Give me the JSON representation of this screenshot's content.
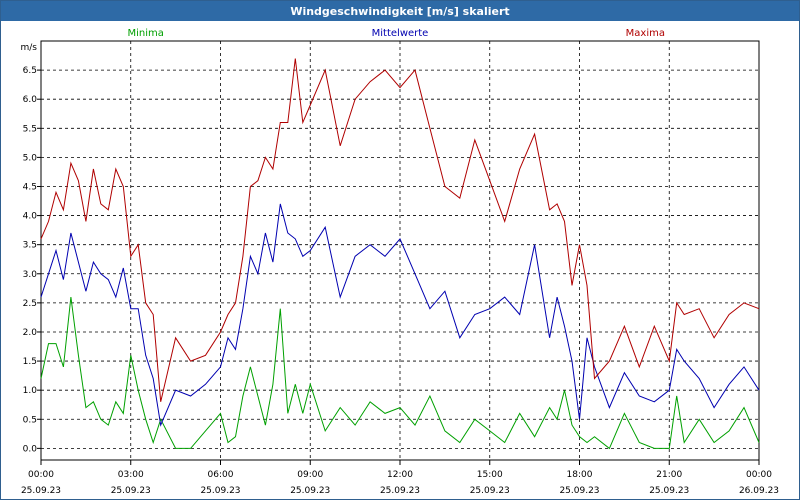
{
  "window": {
    "title": "Windgeschwindigkeit [m/s] skaliert"
  },
  "chart_data": {
    "type": "line",
    "title": "Windgeschwindigkeit [m/s] skaliert",
    "ylabel": "m/s",
    "ylim": [
      -0.2,
      7.0
    ],
    "yticks": [
      0.0,
      0.5,
      1.0,
      1.5,
      2.0,
      2.5,
      3.0,
      3.5,
      4.0,
      4.5,
      5.0,
      5.5,
      6.0,
      6.5
    ],
    "ytick_labels": [
      "0.0",
      "0.5",
      "1.0",
      "1.5",
      "2.0",
      "2.5",
      "3.0",
      "3.5",
      "4.0",
      "4.5",
      "5.0",
      "5.5",
      "6.0",
      "6.5"
    ],
    "x_ticks": [
      {
        "time": "00:00",
        "date": "25.09.23"
      },
      {
        "time": "03:00",
        "date": "25.09.23"
      },
      {
        "time": "06:00",
        "date": "25.09.23"
      },
      {
        "time": "09:00",
        "date": "25.09.23"
      },
      {
        "time": "12:00",
        "date": "25.09.23"
      },
      {
        "time": "15:00",
        "date": "25.09.23"
      },
      {
        "time": "18:00",
        "date": "25.09.23"
      },
      {
        "time": "21:00",
        "date": "25.09.23"
      },
      {
        "time": "00:00",
        "date": "26.09.23"
      }
    ],
    "x_unit": "hours",
    "grid": true,
    "series": [
      {
        "name": "Minima",
        "color": "#00a000",
        "x": [
          0,
          0.25,
          0.5,
          0.75,
          1,
          1.25,
          1.5,
          1.75,
          2,
          2.25,
          2.5,
          2.75,
          3,
          3.25,
          3.5,
          3.75,
          4,
          4.5,
          5,
          5.5,
          6,
          6.25,
          6.5,
          6.75,
          7,
          7.25,
          7.5,
          7.75,
          8,
          8.25,
          8.5,
          8.75,
          9,
          9.5,
          10,
          10.5,
          11,
          11.5,
          12,
          12.5,
          13,
          13.5,
          14,
          14.5,
          15,
          15.5,
          16,
          16.5,
          17,
          17.25,
          17.5,
          17.75,
          18,
          18.25,
          18.5,
          19,
          19.5,
          20,
          20.5,
          21,
          21.25,
          21.5,
          22,
          22.5,
          23,
          23.5,
          24
        ],
        "values": [
          1.2,
          1.8,
          1.8,
          1.4,
          2.6,
          1.6,
          0.7,
          0.8,
          0.5,
          0.4,
          0.8,
          0.6,
          1.6,
          1.0,
          0.5,
          0.1,
          0.5,
          0.0,
          0.0,
          0.3,
          0.6,
          0.1,
          0.2,
          0.9,
          1.4,
          0.9,
          0.4,
          1.1,
          2.4,
          0.6,
          1.1,
          0.6,
          1.1,
          0.3,
          0.7,
          0.4,
          0.8,
          0.6,
          0.7,
          0.4,
          0.9,
          0.3,
          0.1,
          0.5,
          0.3,
          0.1,
          0.6,
          0.2,
          0.7,
          0.5,
          1.0,
          0.4,
          0.2,
          0.1,
          0.2,
          0.0,
          0.6,
          0.1,
          0.0,
          0.0,
          0.9,
          0.1,
          0.5,
          0.1,
          0.3,
          0.7,
          0.1
        ]
      },
      {
        "name": "Mittelwerte",
        "color": "#0000b0",
        "x": [
          0,
          0.25,
          0.5,
          0.75,
          1,
          1.25,
          1.5,
          1.75,
          2,
          2.25,
          2.5,
          2.75,
          3,
          3.25,
          3.5,
          3.75,
          4,
          4.5,
          5,
          5.5,
          6,
          6.25,
          6.5,
          6.75,
          7,
          7.25,
          7.5,
          7.75,
          8,
          8.25,
          8.5,
          8.75,
          9,
          9.5,
          10,
          10.5,
          11,
          11.5,
          12,
          12.5,
          13,
          13.5,
          14,
          14.5,
          15,
          15.5,
          16,
          16.5,
          17,
          17.25,
          17.5,
          17.75,
          18,
          18.25,
          18.5,
          19,
          19.5,
          20,
          20.5,
          21,
          21.25,
          21.5,
          22,
          22.5,
          23,
          23.5,
          24
        ],
        "values": [
          2.6,
          3.0,
          3.4,
          2.9,
          3.7,
          3.2,
          2.7,
          3.2,
          3.0,
          2.9,
          2.6,
          3.1,
          2.4,
          2.4,
          1.6,
          1.2,
          0.4,
          1.0,
          0.9,
          1.1,
          1.4,
          1.9,
          1.7,
          2.4,
          3.3,
          3.0,
          3.7,
          3.2,
          4.2,
          3.7,
          3.6,
          3.3,
          3.4,
          3.8,
          2.6,
          3.3,
          3.5,
          3.3,
          3.6,
          3.0,
          2.4,
          2.7,
          1.9,
          2.3,
          2.4,
          2.6,
          2.3,
          3.5,
          1.9,
          2.6,
          2.1,
          1.5,
          0.5,
          1.9,
          1.4,
          0.7,
          1.3,
          0.9,
          0.8,
          1.0,
          1.7,
          1.5,
          1.2,
          0.7,
          1.1,
          1.4,
          1.0
        ]
      },
      {
        "name": "Maxima",
        "color": "#b00000",
        "x": [
          0,
          0.25,
          0.5,
          0.75,
          1,
          1.25,
          1.5,
          1.75,
          2,
          2.25,
          2.5,
          2.75,
          3,
          3.25,
          3.5,
          3.75,
          4,
          4.5,
          5,
          5.5,
          6,
          6.25,
          6.5,
          6.75,
          7,
          7.25,
          7.5,
          7.75,
          8,
          8.25,
          8.5,
          8.75,
          9,
          9.5,
          10,
          10.5,
          11,
          11.5,
          12,
          12.5,
          13,
          13.5,
          14,
          14.5,
          15,
          15.5,
          16,
          16.5,
          17,
          17.25,
          17.5,
          17.75,
          18,
          18.25,
          18.5,
          19,
          19.5,
          20,
          20.5,
          21,
          21.25,
          21.5,
          22,
          22.5,
          23,
          23.5,
          24
        ],
        "values": [
          3.6,
          3.9,
          4.4,
          4.1,
          4.9,
          4.6,
          3.9,
          4.8,
          4.2,
          4.1,
          4.8,
          4.5,
          3.3,
          3.5,
          2.5,
          2.3,
          0.8,
          1.9,
          1.5,
          1.6,
          2.0,
          2.3,
          2.5,
          3.3,
          4.5,
          4.6,
          5.0,
          4.8,
          5.6,
          5.6,
          6.7,
          5.6,
          5.9,
          6.5,
          5.2,
          6.0,
          6.3,
          6.5,
          6.2,
          6.5,
          5.5,
          4.5,
          4.3,
          5.3,
          4.6,
          3.9,
          4.8,
          5.4,
          4.1,
          4.2,
          3.9,
          2.8,
          3.5,
          2.8,
          1.2,
          1.5,
          2.1,
          1.4,
          2.1,
          1.5,
          2.5,
          2.3,
          2.4,
          1.9,
          2.3,
          2.5,
          2.4
        ]
      }
    ]
  }
}
